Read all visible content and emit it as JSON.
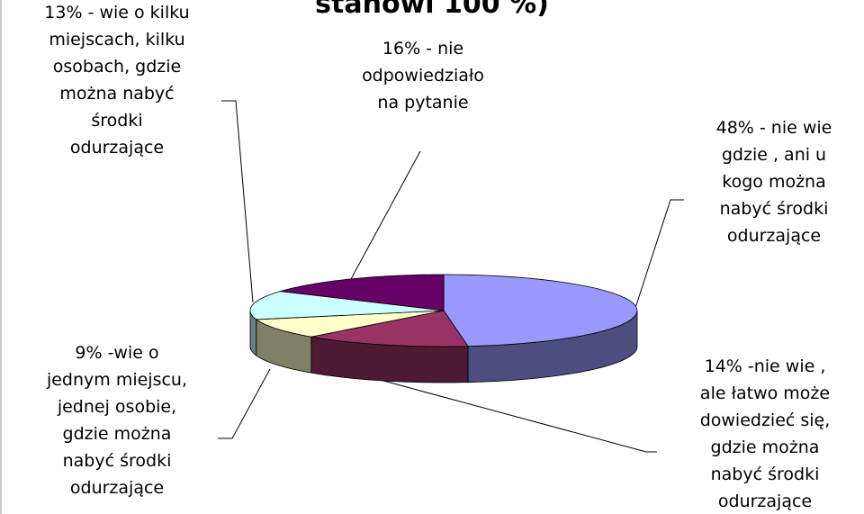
{
  "chart_data": {
    "type": "pie3d",
    "title": "stanowi 100 %)",
    "values": [
      48,
      14,
      9,
      13,
      16
    ],
    "labels": [
      "48% - nie wie\ngdzie , ani u\nkogo można\nnabyć środki\nodurzające",
      "14% -nie wie ,\nale łatwo może\ndowiedzieć się,\ngdzie można\nnabyć środki\nodurzające",
      "9% -wie o\njednym miejscu,\njednej osobie,\ngdzie można\nnabyć środki\nodurzające",
      "13% - wie o kilku\nmiejscach, kilku\nosobach, gdzie\nmożna nabyć\nśrodki\nodurzające",
      "16% - nie\nodpowiedziało\nna pytanie"
    ],
    "colors": [
      "#9999ff",
      "#993366",
      "#ffffcc",
      "#ccffff",
      "#660066"
    ]
  }
}
